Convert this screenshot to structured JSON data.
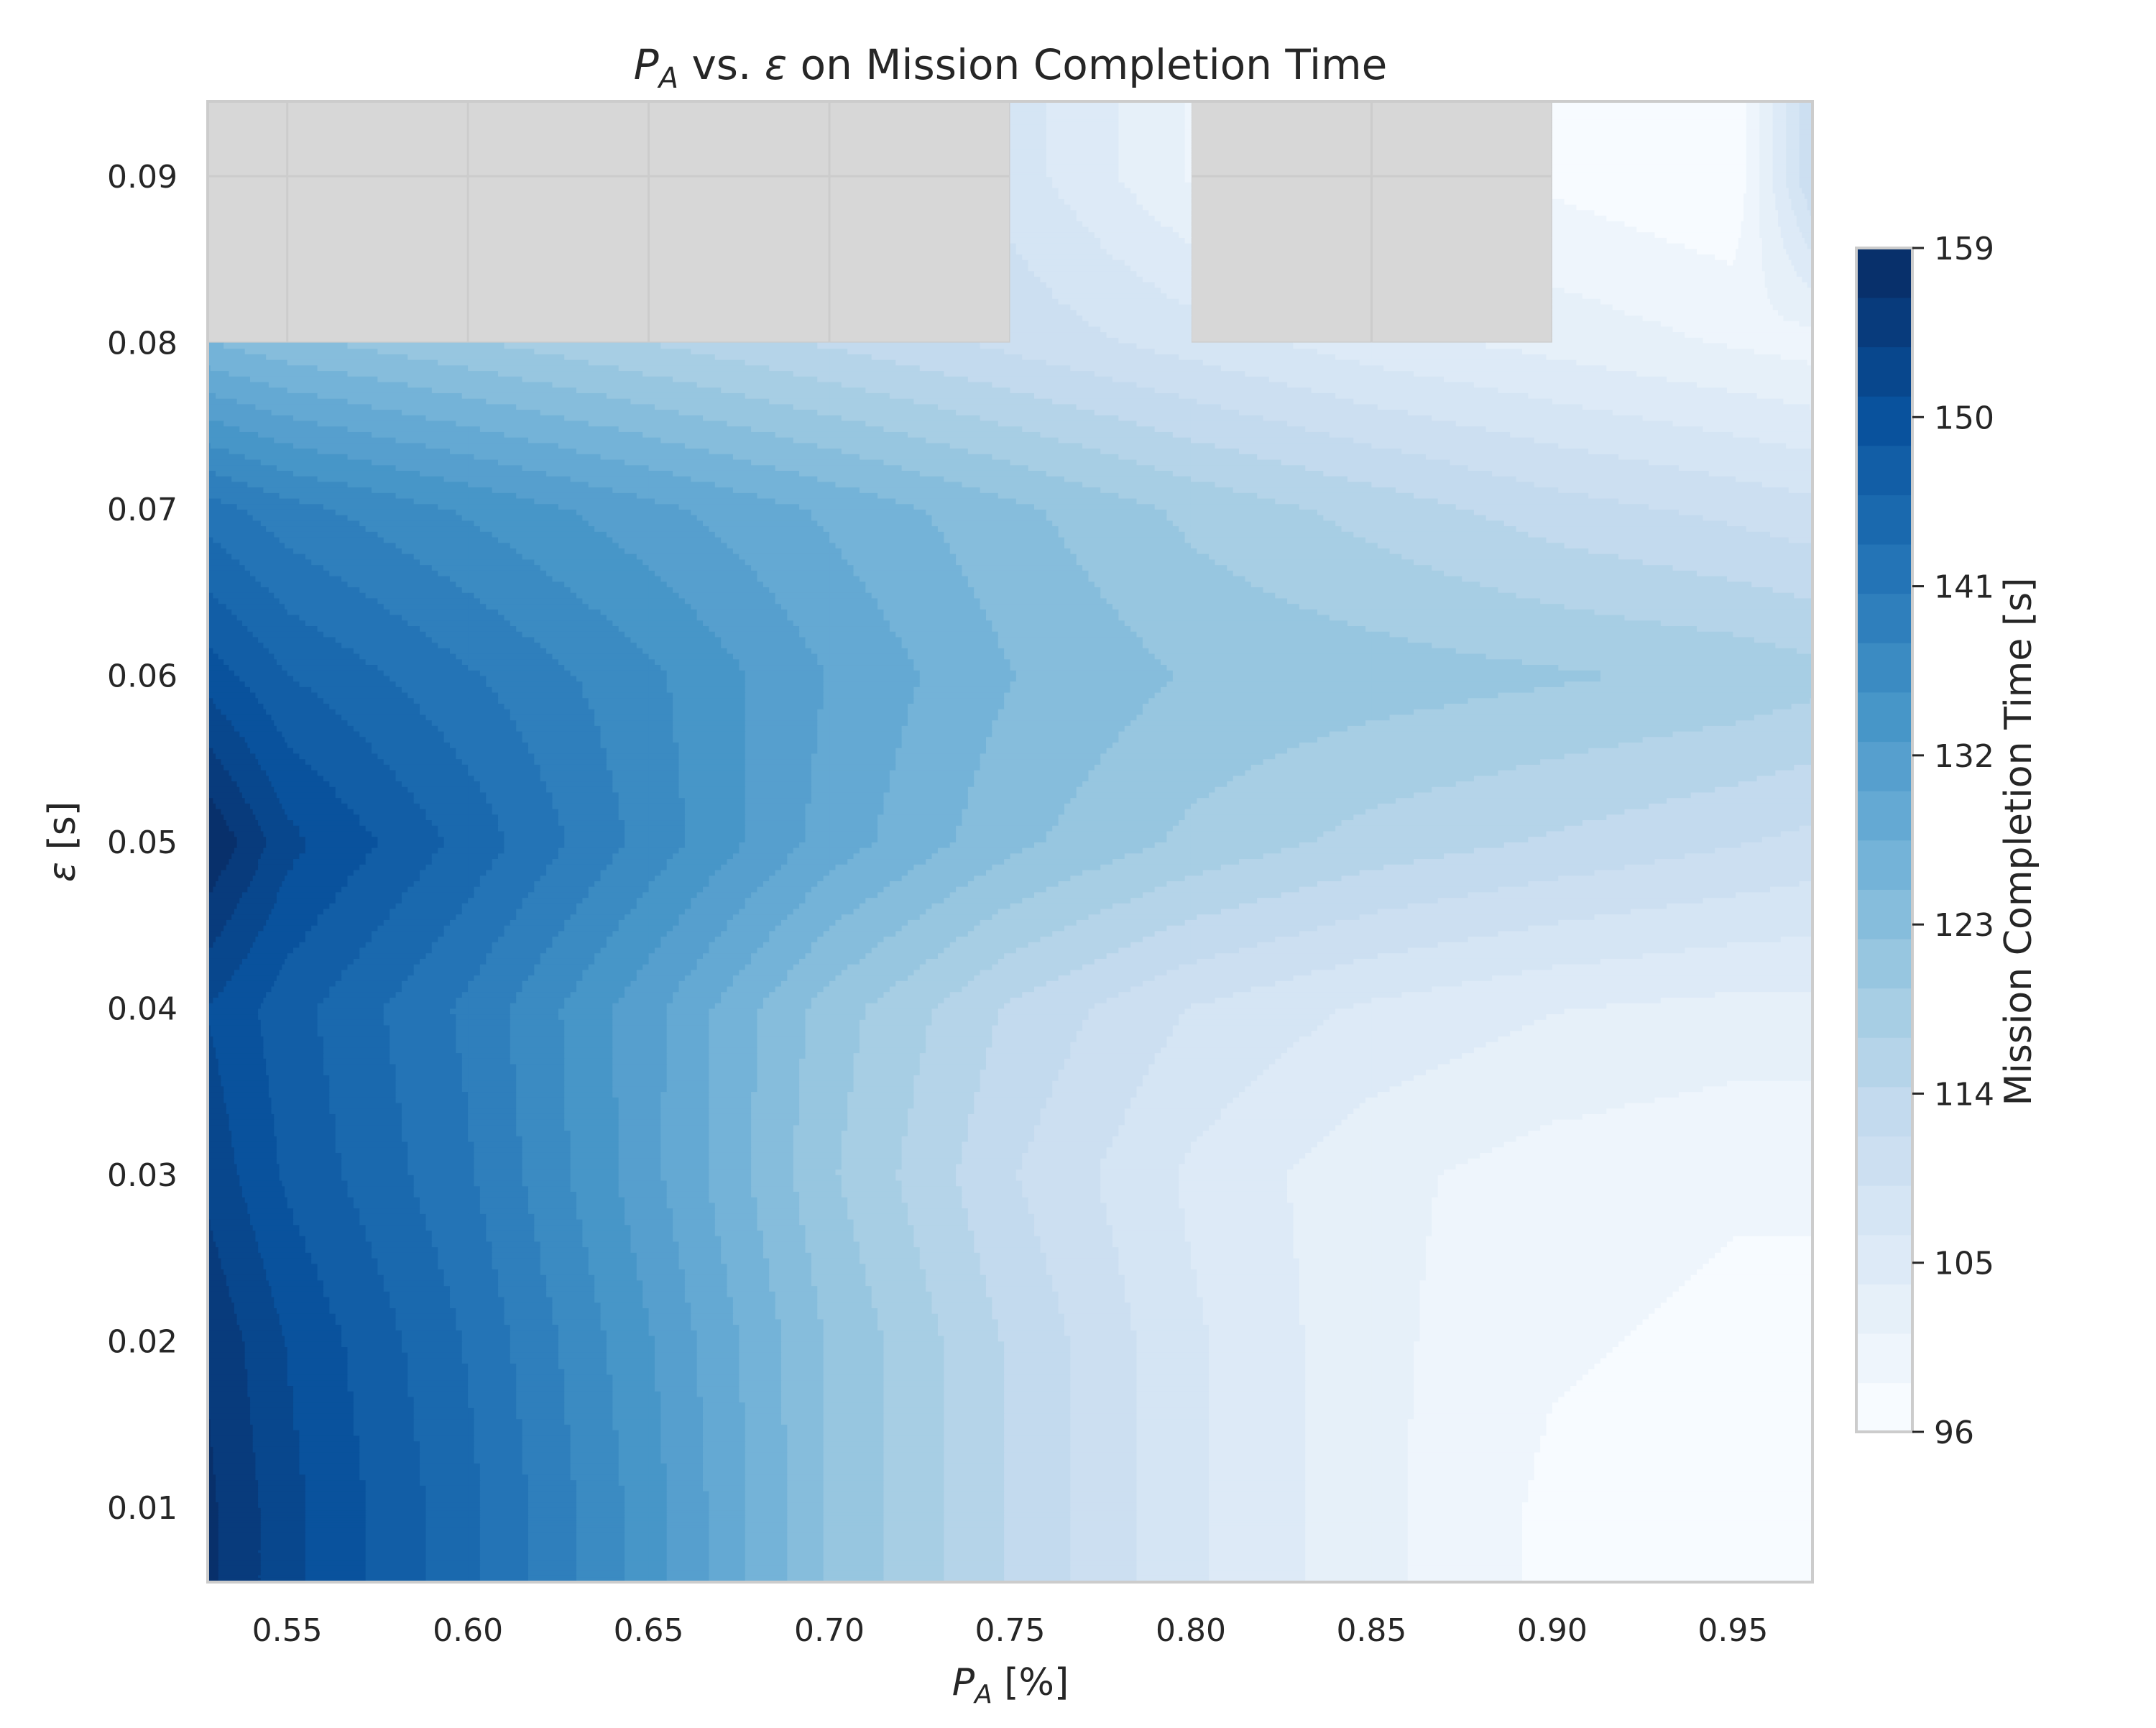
{
  "chart_data": {
    "type": "heatmap",
    "subtype": "filled-contour",
    "title": {
      "symbol": "P",
      "subscript": "A",
      "middle": " vs. ",
      "epsilon": "ε",
      "rest": " on Mission Completion Time"
    },
    "xlabel": {
      "symbol": "P",
      "subscript": "A",
      "unit": " [%]"
    },
    "ylabel": {
      "epsilon": "ε",
      "unit": " [s]"
    },
    "colorbar_label": "Mission Completion Time [s]",
    "x_ticks": [
      "0.55",
      "0.60",
      "0.65",
      "0.70",
      "0.75",
      "0.80",
      "0.85",
      "0.90",
      "0.95"
    ],
    "y_ticks": [
      "0.01",
      "0.02",
      "0.03",
      "0.04",
      "0.05",
      "0.06",
      "0.07",
      "0.08",
      "0.09"
    ],
    "colorbar_ticks": [
      "96",
      "105",
      "114",
      "123",
      "132",
      "141",
      "150",
      "159"
    ],
    "xlim": [
      0.528,
      0.972
    ],
    "ylim": [
      0.0055,
      0.0945
    ],
    "clim": [
      96,
      159
    ],
    "x": [
      0.528,
      0.55,
      0.6,
      0.65,
      0.7,
      0.75,
      0.8,
      0.85,
      0.9,
      0.95,
      0.972
    ],
    "y": [
      0.0055,
      0.01,
      0.02,
      0.03,
      0.04,
      0.05,
      0.06,
      0.07,
      0.08,
      0.09,
      0.0945
    ],
    "z": [
      [
        157,
        152,
        144,
        134,
        122,
        114,
        107,
        102,
        98,
        97,
        97
      ],
      [
        157,
        152,
        144,
        134,
        122,
        114,
        107,
        102,
        98,
        97,
        97
      ],
      [
        156,
        151,
        143,
        133,
        122,
        114,
        107,
        102,
        99,
        98,
        98
      ],
      [
        153,
        148,
        141,
        131,
        120,
        112,
        106,
        102,
        100,
        99,
        99
      ],
      [
        151,
        147,
        140,
        131,
        121,
        114,
        109,
        106,
        104,
        103,
        103
      ],
      [
        159,
        152,
        145,
        137,
        129,
        123,
        119,
        116,
        114,
        112,
        111
      ],
      [
        150,
        146,
        141,
        136,
        130,
        125,
        122,
        121,
        120,
        119,
        118
      ],
      [
        142,
        139,
        135,
        131,
        127,
        123,
        119,
        116,
        113,
        111,
        110
      ],
      [
        125,
        123,
        120,
        117,
        114,
        111,
        108,
        105,
        103,
        101,
        100
      ],
      [
        null,
        null,
        null,
        null,
        null,
        108,
        101,
        null,
        98,
        96,
        112
      ],
      [
        null,
        null,
        null,
        null,
        null,
        108,
        101,
        null,
        98,
        96,
        112
      ]
    ],
    "levels": [
      96,
      98.625,
      101.25,
      103.875,
      106.5,
      109.125,
      111.75,
      114.375,
      117,
      119.625,
      122.25,
      124.875,
      127.5,
      130.125,
      132.75,
      135.375,
      138,
      140.625,
      143.25,
      145.875,
      148.5,
      151.125,
      153.75,
      156.375,
      159
    ],
    "colormap": "Blues",
    "missing_color": "#d7d7d7",
    "grid": true
  }
}
